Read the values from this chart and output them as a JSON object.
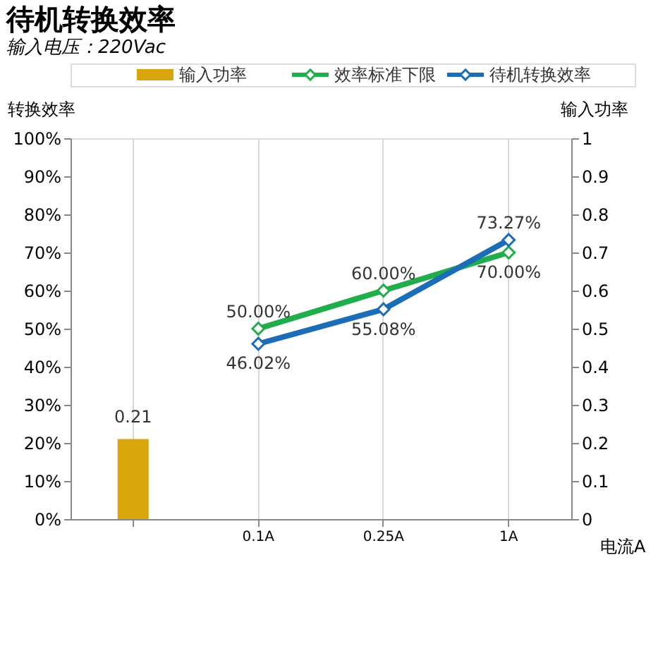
{
  "chart_data": {
    "type": "line",
    "title": "待机转换效率",
    "subtitle": "输入电压：220Vac",
    "categories": [
      null,
      "0.1A",
      "0.25A",
      "1A"
    ],
    "xlabel": "电流A",
    "ylabel": "转换效率",
    "y2label": "输入功率",
    "series": [
      {
        "name": "输入功率",
        "type": "bar",
        "axis": "y2",
        "color": "#d9a50c",
        "values": [
          0.21,
          null,
          null,
          null
        ],
        "value_labels": [
          "0.21",
          null,
          null,
          null
        ]
      },
      {
        "name": "效率标准下限",
        "color": "#1fae4b",
        "values": [
          null,
          50,
          60,
          70
        ],
        "value_labels": [
          null,
          "50.00%",
          "60.00%",
          "70.00%"
        ]
      },
      {
        "name": "待机转换效率",
        "color": "#1b6db5",
        "values": [
          null,
          46.02,
          55.08,
          73.27
        ],
        "value_labels": [
          null,
          "46.02%",
          "55.08%",
          "73.27%"
        ]
      }
    ],
    "ylim": [
      0,
      100
    ],
    "yticks": [
      {
        "value": 0,
        "label": "0%"
      },
      {
        "value": 10,
        "label": "10%"
      },
      {
        "value": 20,
        "label": "20%"
      },
      {
        "value": 30,
        "label": "30%"
      },
      {
        "value": 40,
        "label": "40%"
      },
      {
        "value": 50,
        "label": "50%"
      },
      {
        "value": 60,
        "label": "60%"
      },
      {
        "value": 70,
        "label": "70%"
      },
      {
        "value": 80,
        "label": "80%"
      },
      {
        "value": 90,
        "label": "90%"
      },
      {
        "value": 100,
        "label": "100%"
      }
    ],
    "y2lim": [
      0,
      1
    ],
    "y2ticks": [
      0,
      0.1,
      0.2,
      0.3,
      0.4,
      0.5,
      0.6,
      0.7,
      0.8,
      0.9,
      1
    ],
    "grid": "x",
    "legend": "top",
    "marker": "diamond",
    "line_style": "solid"
  }
}
